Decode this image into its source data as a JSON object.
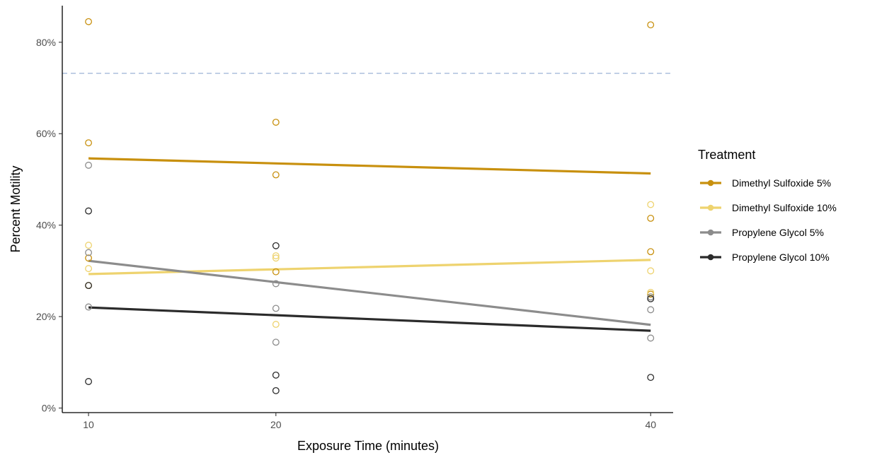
{
  "chart_data": {
    "type": "scatter",
    "title": "",
    "xlabel": "Exposure Time (minutes)",
    "ylabel": "Percent Motility",
    "x_ticks": [
      10,
      20,
      40
    ],
    "y_ticks": [
      0,
      20,
      40,
      60,
      80
    ],
    "y_tick_labels": [
      "0%",
      "20%",
      "40%",
      "60%",
      "80%"
    ],
    "xlim": [
      8.6,
      41.2
    ],
    "ylim": [
      -1,
      88
    ],
    "grid": false,
    "legend_position": "right",
    "legend_title": "Treatment",
    "reference_line": {
      "y": 73.2,
      "color": "#9db3d6",
      "style": "dashed"
    },
    "series": [
      {
        "name": "Dimethyl Sulfoxide 5%",
        "color": "#c8900e",
        "points": [
          [
            10,
            84.5
          ],
          [
            10,
            58
          ],
          [
            10,
            32.8
          ],
          [
            10,
            26.8
          ],
          [
            20,
            62.5
          ],
          [
            20,
            51
          ],
          [
            20,
            29.8
          ],
          [
            40,
            83.8
          ],
          [
            40,
            41.5
          ],
          [
            40,
            34.2
          ],
          [
            40,
            24.9
          ]
        ],
        "fit": [
          [
            10,
            54.6
          ],
          [
            40,
            51.3
          ]
        ]
      },
      {
        "name": "Dimethyl Sulfoxide 10%",
        "color": "#eed36f",
        "points": [
          [
            10,
            35.6
          ],
          [
            10,
            30.5
          ],
          [
            20,
            33.3
          ],
          [
            20,
            32.8
          ],
          [
            20,
            18.3
          ],
          [
            40,
            44.5
          ],
          [
            40,
            30
          ],
          [
            40,
            25.3
          ]
        ],
        "fit": [
          [
            10,
            29.3
          ],
          [
            40,
            32.4
          ]
        ]
      },
      {
        "name": "Propylene Glycol 5%",
        "color": "#8c8c8c",
        "points": [
          [
            10,
            53.1
          ],
          [
            10,
            34
          ],
          [
            10,
            22.1
          ],
          [
            20,
            27.2
          ],
          [
            20,
            21.8
          ],
          [
            20,
            14.4
          ],
          [
            40,
            24.3
          ],
          [
            40,
            21.5
          ],
          [
            40,
            15.3
          ]
        ],
        "fit": [
          [
            10,
            32.2
          ],
          [
            40,
            18.2
          ]
        ]
      },
      {
        "name": "Propylene Glycol 10%",
        "color": "#2b2b2b",
        "points": [
          [
            10,
            43.1
          ],
          [
            10,
            26.8
          ],
          [
            10,
            5.8
          ],
          [
            20,
            35.5
          ],
          [
            20,
            7.2
          ],
          [
            20,
            3.8
          ],
          [
            40,
            23.9
          ],
          [
            40,
            6.7
          ]
        ],
        "fit": [
          [
            10,
            22
          ],
          [
            40,
            16.9
          ]
        ]
      }
    ]
  }
}
